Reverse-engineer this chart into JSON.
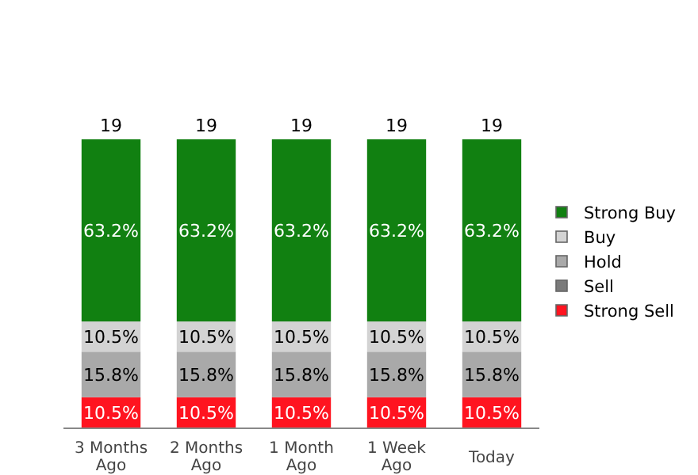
{
  "chart_data": {
    "type": "bar",
    "stacked": true,
    "categories": [
      "3 Months Ago",
      "2 Months Ago",
      "1 Month Ago",
      "1 Week Ago",
      "Today"
    ],
    "series": [
      {
        "name": "Strong Sell",
        "color": "#ff1420",
        "values": [
          10.5,
          10.5,
          10.5,
          10.5,
          10.5
        ],
        "value_labels": [
          "10.5%",
          "10.5%",
          "10.5%",
          "10.5%",
          "10.5%"
        ]
      },
      {
        "name": "Sell",
        "color": "#7a7a7a",
        "values": [
          null,
          null,
          null,
          null,
          null
        ]
      },
      {
        "name": "Hold",
        "color": "#a9a9a9",
        "values": [
          15.8,
          15.8,
          15.8,
          15.8,
          15.8
        ],
        "value_labels": [
          "15.8%",
          "15.8%",
          "15.8%",
          "15.8%",
          "15.8%"
        ]
      },
      {
        "name": "Buy",
        "color": "#d3d3d3",
        "values": [
          10.5,
          10.5,
          10.5,
          10.5,
          10.5
        ],
        "value_labels": [
          "10.5%",
          "10.5%",
          "10.5%",
          "10.5%",
          "10.5%"
        ]
      },
      {
        "name": "Strong Buy",
        "color": "#118011",
        "values": [
          63.2,
          63.2,
          63.2,
          63.2,
          63.2
        ],
        "value_labels": [
          "63.2%",
          "63.2%",
          "63.2%",
          "63.2%",
          "63.2%"
        ]
      }
    ],
    "annotations": [
      {
        "text": "19",
        "x": "3 Months Ago",
        "y": 100
      },
      {
        "text": "19",
        "x": "2 Months Ago",
        "y": 100
      },
      {
        "text": "19",
        "x": "1 Month Ago",
        "y": 100
      },
      {
        "text": "19",
        "x": "1 Week Ago",
        "y": 100
      },
      {
        "text": "19",
        "x": "Today",
        "y": 100
      }
    ],
    "legend": "right",
    "tick_labels": "x"
  }
}
